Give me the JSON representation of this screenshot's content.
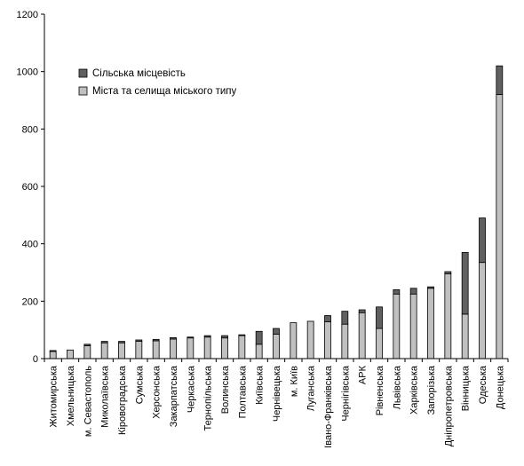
{
  "chart_data": {
    "type": "bar",
    "stacked": true,
    "title": "",
    "xlabel": "",
    "ylabel": "",
    "ylim": [
      0,
      1200
    ],
    "yticks": [
      0,
      200,
      400,
      600,
      800,
      1000,
      1200
    ],
    "grid": false,
    "legend_position": "top-left",
    "categories": [
      "Житомирська",
      "Хмельницька",
      "м. Севастополь",
      "Миколаївська",
      "Кіровоградська",
      "Сумська",
      "Херсонська",
      "Закарпатська",
      "Черкаська",
      "Тернопільська",
      "Волинська",
      "Полтавська",
      "Київська",
      "Чернівецька",
      "м. Київ",
      "Луганська",
      "Івано-Франківська",
      "Чернігівська",
      "АРК",
      "Рівненська",
      "Львівська",
      "Харківська",
      "Запорізька",
      "Дніпропетровська",
      "Вінницька",
      "Одеська",
      "Донецька"
    ],
    "series": [
      {
        "name": "Міста та селища міського типу",
        "color": "#c0c0c0",
        "values": [
          25,
          30,
          45,
          55,
          55,
          60,
          62,
          68,
          72,
          75,
          72,
          80,
          50,
          85,
          125,
          130,
          128,
          120,
          160,
          105,
          225,
          225,
          245,
          295,
          155,
          335,
          920
        ]
      },
      {
        "name": "Сільська місцевість",
        "color": "#606060",
        "values": [
          3,
          0,
          5,
          5,
          5,
          5,
          5,
          5,
          3,
          5,
          8,
          3,
          45,
          20,
          0,
          0,
          22,
          45,
          10,
          75,
          15,
          20,
          5,
          8,
          215,
          155,
          100
        ]
      }
    ]
  }
}
